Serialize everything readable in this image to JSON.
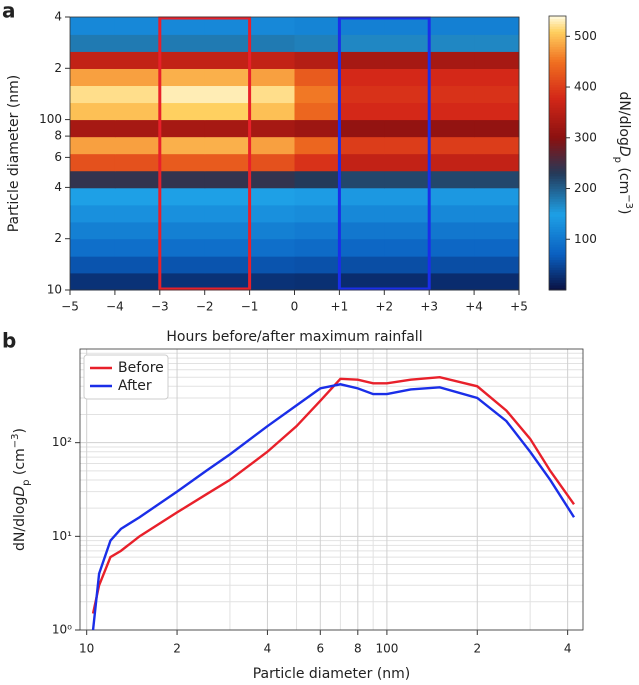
{
  "chart_data": [
    {
      "type": "heatmap",
      "panel": "a",
      "xlabel": "Hours before/after maximum rainfall",
      "ylabel": "Particle diameter (nm)",
      "xlim": [
        -5,
        5
      ],
      "xticks": [
        {
          "value": -5,
          "label": "−5"
        },
        {
          "value": -4,
          "label": "−4"
        },
        {
          "value": -3,
          "label": "−3"
        },
        {
          "value": -2,
          "label": "−2"
        },
        {
          "value": -1,
          "label": "−1"
        },
        0,
        {
          "value": 1,
          "label": "+1"
        },
        {
          "value": 2,
          "label": "+2"
        },
        {
          "value": 3,
          "label": "+3"
        },
        {
          "value": 4,
          "label": "+4"
        },
        {
          "value": 5,
          "label": "+5"
        }
      ],
      "ylim": [
        10,
        400
      ],
      "ylog": true,
      "yticks": [
        {
          "value": 400,
          "label": "4"
        },
        {
          "value": 200,
          "label": "2"
        },
        100,
        {
          "value": 80,
          "label": "8"
        },
        {
          "value": 60,
          "label": "6"
        },
        {
          "value": 40,
          "label": "4"
        },
        {
          "value": 20,
          "label": "2"
        },
        10
      ],
      "xbins": [
        -5,
        -4,
        -3,
        -2,
        -1,
        0,
        1,
        2,
        3,
        4,
        5
      ],
      "ybins": [
        10,
        12.6,
        15.8,
        20,
        25.1,
        31.6,
        39.8,
        50.1,
        63.1,
        79.4,
        100,
        125.9,
        158.5,
        199.5,
        251.2,
        316.2,
        400
      ],
      "z": [
        [
          30,
          30,
          30,
          30,
          30,
          28,
          25,
          25,
          25,
          25
        ],
        [
          60,
          60,
          60,
          60,
          60,
          58,
          55,
          55,
          55,
          55
        ],
        [
          90,
          90,
          90,
          90,
          90,
          85,
          80,
          80,
          80,
          80
        ],
        [
          110,
          110,
          110,
          110,
          110,
          105,
          100,
          100,
          100,
          100
        ],
        [
          130,
          130,
          130,
          130,
          130,
          125,
          120,
          120,
          120,
          120
        ],
        [
          150,
          150,
          150,
          150,
          150,
          145,
          140,
          140,
          140,
          140
        ],
        [
          240,
          240,
          240,
          240,
          240,
          230,
          220,
          220,
          220,
          220
        ],
        [
          420,
          420,
          430,
          430,
          420,
          390,
          360,
          360,
          360,
          360
        ],
        [
          480,
          480,
          490,
          490,
          480,
          440,
          400,
          400,
          400,
          400
        ],
        [
          330,
          330,
          330,
          330,
          330,
          320,
          310,
          310,
          310,
          310
        ],
        [
          500,
          500,
          510,
          510,
          500,
          440,
          380,
          380,
          380,
          380
        ],
        [
          520,
          520,
          530,
          530,
          520,
          455,
          390,
          390,
          390,
          390
        ],
        [
          480,
          480,
          490,
          490,
          480,
          430,
          380,
          380,
          380,
          380
        ],
        [
          360,
          360,
          360,
          360,
          360,
          345,
          330,
          330,
          330,
          330
        ],
        [
          180,
          180,
          180,
          180,
          180,
          175,
          170,
          170,
          170,
          170
        ],
        [
          120,
          120,
          120,
          120,
          120,
          115,
          110,
          110,
          110,
          110
        ]
      ],
      "zlim": [
        0,
        540
      ],
      "zticks": [
        100,
        200,
        300,
        400,
        500
      ],
      "colormap": [
        [
          0,
          "#0a1040"
        ],
        [
          70,
          "#0a5fc0"
        ],
        [
          150,
          "#1ea0e6"
        ],
        [
          230,
          "#243a5a"
        ],
        [
          300,
          "#8a1010"
        ],
        [
          380,
          "#d42818"
        ],
        [
          450,
          "#f07020"
        ],
        [
          510,
          "#ffd060"
        ],
        [
          540,
          "#fffbe0"
        ]
      ],
      "colorbar_label": [
        "dN/dlog",
        "D",
        "p",
        " (cm",
        "−3",
        ")"
      ],
      "highlights": [
        {
          "x": [
            -3,
            -1
          ],
          "color": "#e8202a"
        },
        {
          "x": [
            1,
            3
          ],
          "color": "#1a2ee8"
        }
      ]
    },
    {
      "type": "line",
      "panel": "b",
      "xlabel": "Particle diameter (nm)",
      "ylabel": [
        "dN/dlog",
        "D",
        "p",
        " (cm",
        "−3",
        ")"
      ],
      "xlog": true,
      "ylog": true,
      "xlim": [
        9.5,
        450
      ],
      "ylim": [
        1,
        1000
      ],
      "xticks": [
        10,
        {
          "value": 20,
          "label": "2"
        },
        {
          "value": 40,
          "label": "4"
        },
        {
          "value": 60,
          "label": "6"
        },
        {
          "value": 80,
          "label": "8"
        },
        100,
        {
          "value": 200,
          "label": "2"
        },
        {
          "value": 400,
          "label": "4"
        }
      ],
      "xminor": [
        30,
        50,
        70,
        90,
        300
      ],
      "yticks": [
        {
          "value": 1,
          "label": "10⁰"
        },
        {
          "value": 10,
          "label": "10¹"
        },
        {
          "value": 100,
          "label": "10²"
        }
      ],
      "yminor": [
        2,
        3,
        4,
        5,
        6,
        7,
        8,
        9,
        20,
        30,
        40,
        50,
        60,
        70,
        80,
        90,
        200,
        300,
        400,
        500,
        600,
        700,
        800,
        900
      ],
      "grid": true,
      "legend": "upper left",
      "x": [
        10.5,
        11,
        12,
        13,
        15,
        20,
        25,
        30,
        40,
        50,
        60,
        70,
        80,
        90,
        100,
        120,
        150,
        200,
        250,
        300,
        350,
        420
      ],
      "series": [
        {
          "name": "Before",
          "color": "#e8202a",
          "values": [
            1.5,
            3,
            6,
            7,
            10,
            18,
            28,
            40,
            80,
            150,
            280,
            480,
            470,
            430,
            430,
            470,
            500,
            400,
            220,
            110,
            50,
            22
          ]
        },
        {
          "name": "After",
          "color": "#1a2ee8",
          "values": [
            1,
            4,
            9,
            12,
            16,
            30,
            50,
            75,
            150,
            250,
            380,
            420,
            380,
            330,
            330,
            370,
            390,
            300,
            170,
            80,
            40,
            16
          ]
        }
      ]
    }
  ]
}
